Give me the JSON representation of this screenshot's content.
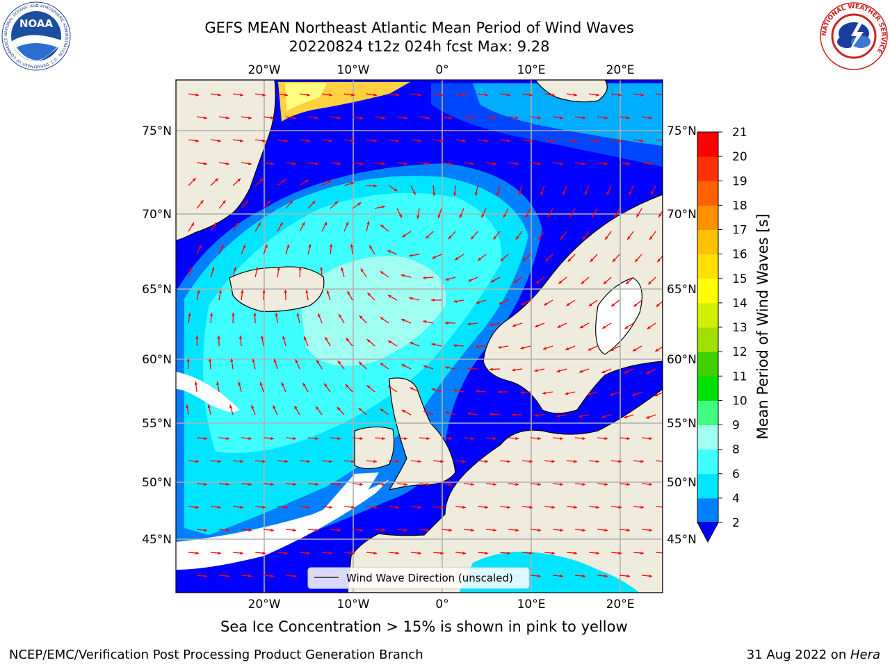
{
  "title_line1": "GEFS MEAN Northeast Atlantic Mean Period of Wind Waves",
  "title_line2": "20220824 t12z 024h fcst   Max: 9.28",
  "ice_note": "Sea Ice Concentration > 15% is shown in pink to yellow",
  "footer_left": "NCEP/EMC/Verification Post Processing Product Generation Branch",
  "footer_date": "31 Aug 2022 on ",
  "footer_machine": "Hera",
  "legend_label": "Wind Wave Direction (unscaled)",
  "colorbar": {
    "label": "Mean Period of Wind Waves [s]",
    "ticks": [
      "2",
      "4",
      "6",
      "8",
      "9",
      "10",
      "11",
      "12",
      "13",
      "14",
      "15",
      "16",
      "17",
      "18",
      "19",
      "20",
      "21"
    ],
    "colors": [
      "#0000ff",
      "#0080ff",
      "#00e5ff",
      "#40ffff",
      "#a0fff0",
      "#40ff80",
      "#00e000",
      "#40d000",
      "#a0e000",
      "#d0f000",
      "#ffff00",
      "#ffe000",
      "#ffc000",
      "#ff9000",
      "#ff6000",
      "#ff3000",
      "#ff0000"
    ]
  },
  "axes": {
    "lon_labels": [
      "20°W",
      "10°W",
      "0°",
      "10°E",
      "20°E"
    ],
    "lat_labels": [
      "75°N",
      "70°N",
      "65°N",
      "60°N",
      "55°N",
      "50°N",
      "45°N"
    ]
  },
  "logos": {
    "noaa_text": "NOAA",
    "noaa_ring": "NATIONAL OCEANIC AND ATMOSPHERIC ADMINISTRATION · U.S. DEPARTMENT OF COMMERCE",
    "nws_ring": "NATIONAL WEATHER SERVICE"
  },
  "colors": {
    "land": "#efebdd",
    "arrow": "#ff0000",
    "grid": "#b0b0b0"
  }
}
